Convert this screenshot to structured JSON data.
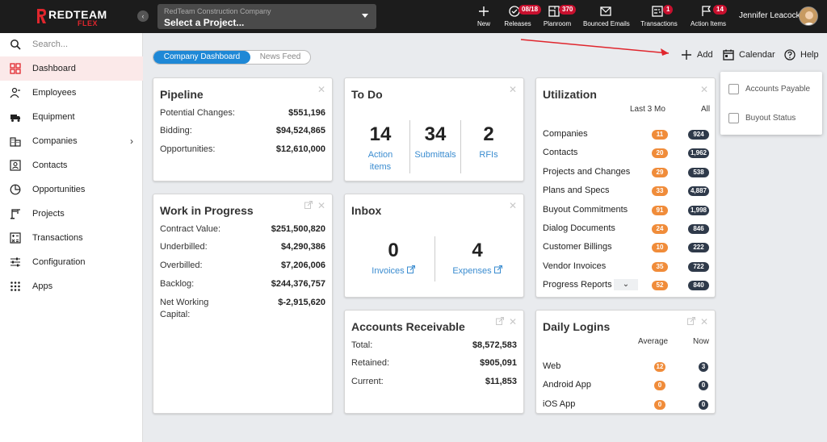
{
  "brand": {
    "name": "REDTEAM",
    "sub": "FLEX"
  },
  "project": {
    "company": "RedTeam Construction Company",
    "placeholder": "Select a Project..."
  },
  "toolbar": [
    {
      "id": "new",
      "label": "New",
      "icon": "plus-icon",
      "badge": ""
    },
    {
      "id": "releases",
      "label": "Releases",
      "icon": "releases-icon",
      "badge": "08/18"
    },
    {
      "id": "planroom",
      "label": "Planroom",
      "icon": "planroom-icon",
      "badge": "370"
    },
    {
      "id": "bounced",
      "label": "Bounced Emails",
      "icon": "mail-icon",
      "badge": ""
    },
    {
      "id": "transactions",
      "label": "Transactions",
      "icon": "transactions-icon",
      "badge": "1"
    },
    {
      "id": "actionitems",
      "label": "Action Items",
      "icon": "flag-icon",
      "badge": "14"
    }
  ],
  "user": {
    "name": "Jennifer Leacock"
  },
  "sidebar": {
    "search_placeholder": "Search...",
    "items": [
      {
        "label": "Dashboard",
        "icon": "dashboard-icon",
        "active": true
      },
      {
        "label": "Employees",
        "icon": "employees-icon"
      },
      {
        "label": "Equipment",
        "icon": "truck-icon"
      },
      {
        "label": "Companies",
        "icon": "building-icon"
      },
      {
        "label": "Contacts",
        "icon": "contact-card-icon"
      },
      {
        "label": "Opportunities",
        "icon": "pie-icon"
      },
      {
        "label": "Projects",
        "icon": "crane-icon"
      },
      {
        "label": "Transactions",
        "icon": "calculator-icon"
      },
      {
        "label": "Configuration",
        "icon": "sliders-icon"
      },
      {
        "label": "Apps",
        "icon": "grid-icon"
      }
    ]
  },
  "tabs": {
    "company": "Company Dashboard",
    "news": "News Feed"
  },
  "actions": {
    "add": "Add",
    "calendar": "Calendar",
    "help": "Help"
  },
  "dropdown": {
    "items": [
      "Accounts Payable",
      "Buyout Status"
    ]
  },
  "pipeline": {
    "title": "Pipeline",
    "rows": [
      {
        "label": "Potential Changes:",
        "value": "$551,196"
      },
      {
        "label": "Bidding:",
        "value": "$94,524,865"
      },
      {
        "label": "Opportunities:",
        "value": "$12,610,000"
      }
    ]
  },
  "wip": {
    "title": "Work in Progress",
    "rows": [
      {
        "label": "Contract Value:",
        "value": "$251,500,820"
      },
      {
        "label": "Underbilled:",
        "value": "$4,290,386"
      },
      {
        "label": "Overbilled:",
        "value": "$7,206,006"
      },
      {
        "label": "Backlog:",
        "value": "$244,376,757"
      },
      {
        "label": "Net Working",
        "label2": "Capital:",
        "value": "$-2,915,620"
      }
    ]
  },
  "todo": {
    "title": "To Do",
    "stats": [
      {
        "num": "14",
        "label": "Action",
        "label2": "items"
      },
      {
        "num": "34",
        "label": "Submittals"
      },
      {
        "num": "2",
        "label": "RFIs"
      }
    ]
  },
  "inbox": {
    "title": "Inbox",
    "stats": [
      {
        "num": "0",
        "label": "Invoices"
      },
      {
        "num": "4",
        "label": "Expenses"
      }
    ]
  },
  "ar": {
    "title": "Accounts Receivable",
    "rows": [
      {
        "label": "Total:",
        "value": "$8,572,583"
      },
      {
        "label": "Retained:",
        "value": "$905,091"
      },
      {
        "label": "Current:",
        "value": "$11,853"
      }
    ]
  },
  "utilization": {
    "title": "Utilization",
    "col1": "Last 3 Mo",
    "col2": "All",
    "rows": [
      {
        "label": "Companies",
        "a": "11",
        "b": "924"
      },
      {
        "label": "Contacts",
        "a": "20",
        "b": "1,962"
      },
      {
        "label": "Projects and Changes",
        "a": "29",
        "b": "538"
      },
      {
        "label": "Plans and Specs",
        "a": "33",
        "b": "4,887"
      },
      {
        "label": "Buyout Commitments",
        "a": "91",
        "b": "1,998"
      },
      {
        "label": "Dialog Documents",
        "a": "24",
        "b": "846"
      },
      {
        "label": "Customer Billings",
        "a": "10",
        "b": "222"
      },
      {
        "label": "Vendor Invoices",
        "a": "35",
        "b": "722"
      },
      {
        "label": "Progress Reports",
        "a": "52",
        "b": "840"
      }
    ]
  },
  "logins": {
    "title": "Daily Logins",
    "col1": "Average",
    "col2": "Now",
    "rows": [
      {
        "label": "Web",
        "a": "12",
        "b": "3"
      },
      {
        "label": "Android App",
        "a": "0",
        "b": "0"
      },
      {
        "label": "iOS App",
        "a": "0",
        "b": "0"
      }
    ]
  },
  "colors": {
    "accent": "#1e88d6",
    "brand": "#c8102e",
    "orange": "#f08c3a",
    "dark": "#2f3a4a"
  }
}
